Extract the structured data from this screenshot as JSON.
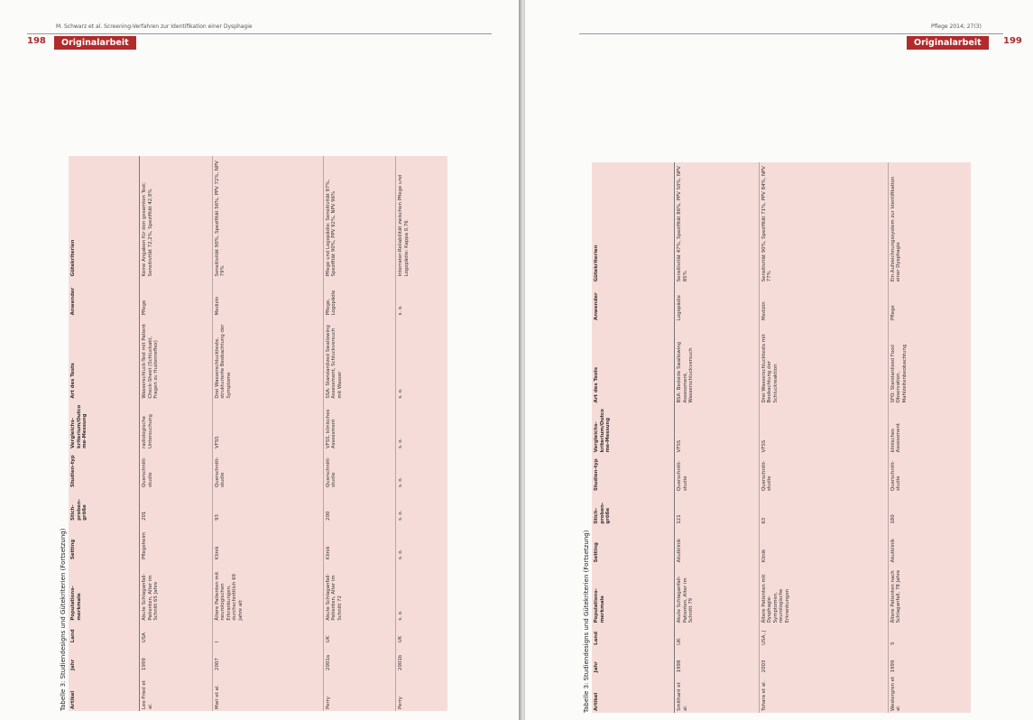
{
  "header": {
    "left_running": "M. Schwarz et al. Screening-Verfahren zur Identifikation einer Dysphagie",
    "right_running": "Pflege 2014; 27(3)"
  },
  "pages": [
    {
      "page_number": "198",
      "label": "Originalarbeit",
      "table": {
        "caption": "Tabelle 3: Studiendesigns und Gütekriterien (Fortsetzung)",
        "columns": [
          "Artikel",
          "Jahr",
          "Land",
          "Populations-merkmale",
          "Setting",
          "Stich-proben-größe",
          "Studien-typ",
          "Vergleichs-kriterium/Outcome-Messung",
          "Art des Tests",
          "Anwender",
          "Gütekriterien"
        ],
        "rows": [
          [
            "Lee-Fried et al.",
            "1999",
            "USA",
            "Akute Schlaganfall-Patienten, Alter im Schnitt 65 Jahre",
            "Pflegeheim",
            "201",
            "Querschnitt-studie",
            "radiologische Untersuchung",
            "Wasserschluck-Test mit Patient Check-Sheet (Schluckakt, Fragen zu Hustenreflex)",
            "Pflege",
            "Keine Angaben für den gesamten Test; Sensitivität 72,2%, Spezifität 42,9%"
          ],
          [
            "Mari et al.",
            "2007",
            "I",
            "Ältere Patienten mit neurologischen Erkrankungen, durchschnittlich 69 Jahre alt",
            "Klinik",
            "93",
            "Querschnitt-studie",
            "VFSS",
            "Drei Wasserschluckteste, strukturierte Beobachtung der Symptome",
            "Medizin",
            "Sensitivität 90%, Spezifität 56%, PPV 72%, NPV 79%"
          ],
          [
            "Perry",
            "2001a",
            "UK",
            "Akute Schlaganfall-Patienten, Alter im Schnitt 72",
            "Klinik",
            "200",
            "Querschnitt-studie",
            "VFSS, klinisches Assessment",
            "SSA: Standardized Swallowing Assessment, Schluckversuch mit Wasser",
            "Pflege, Logopädie",
            "Pflege und Logopädie: Sensitivität 97%, Spezifität 90%, PPV 92%, NPV 96%"
          ],
          [
            "Perry",
            "2001b",
            "UK",
            "s. o.",
            "s. o.",
            "s. o.",
            "s. o.",
            "s. o.",
            "s. o.",
            "s. o.",
            "Interrater-Reliabilität zwischen Pflege und Logopädie: Kappa 0,76"
          ]
        ]
      }
    },
    {
      "page_number": "199",
      "label": "Originalarbeit",
      "table": {
        "caption": "Tabelle 3: Studiendesigns und Gütekriterien (Fortsetzung)",
        "columns": [
          "Artikel",
          "Jahr",
          "Land",
          "Populations-merkmale",
          "Setting",
          "Stich-proben-größe",
          "Studien-typ",
          "Vergleichs-kriterium/Outcome-Messung",
          "Art des Tests",
          "Anwender",
          "Gütekriterien"
        ],
        "rows": [
          [
            "Smithard et al.",
            "1998",
            "UK",
            "Akute Schlaganfall-Patienten, Alter im Schnitt 79",
            "Akutklinik",
            "121",
            "Querschnitt-studie",
            "VFSS",
            "BSA: Bedside Swallowing Assessment, Wasserschluckversuch",
            "Logopädie",
            "Sensitivität 47%, Spezifität 86%, PPV 50%, NPV 85%"
          ],
          [
            "Tohara et al.",
            "2003",
            "USA, J",
            "Ältere Patienten mit Dysphagie-Symptomen, neurologische Erkrankungen",
            "Klinik",
            "63",
            "Querschnitt-studie",
            "VFSS",
            "Drei Wasserschlucktests mit Beobachtung der Schluckreaktion",
            "Medizin",
            "Sensitivität 90%, Spezifität 71%, PPV 84%, NPV 77%"
          ],
          [
            "Westergren et al.",
            "1999",
            "S",
            "Ältere Patienten nach Schlaganfall, 78 Jahre",
            "Akutklinik",
            "180",
            "Querschnitt-studie",
            "klinisches Assessment",
            "SFO: Standardized Food Observation, Mahlzeitenbeobachtung",
            "Pflege",
            "Ein Aufzeichnungssystem zur Identifikation einer Dysphagie"
          ]
        ]
      }
    }
  ]
}
